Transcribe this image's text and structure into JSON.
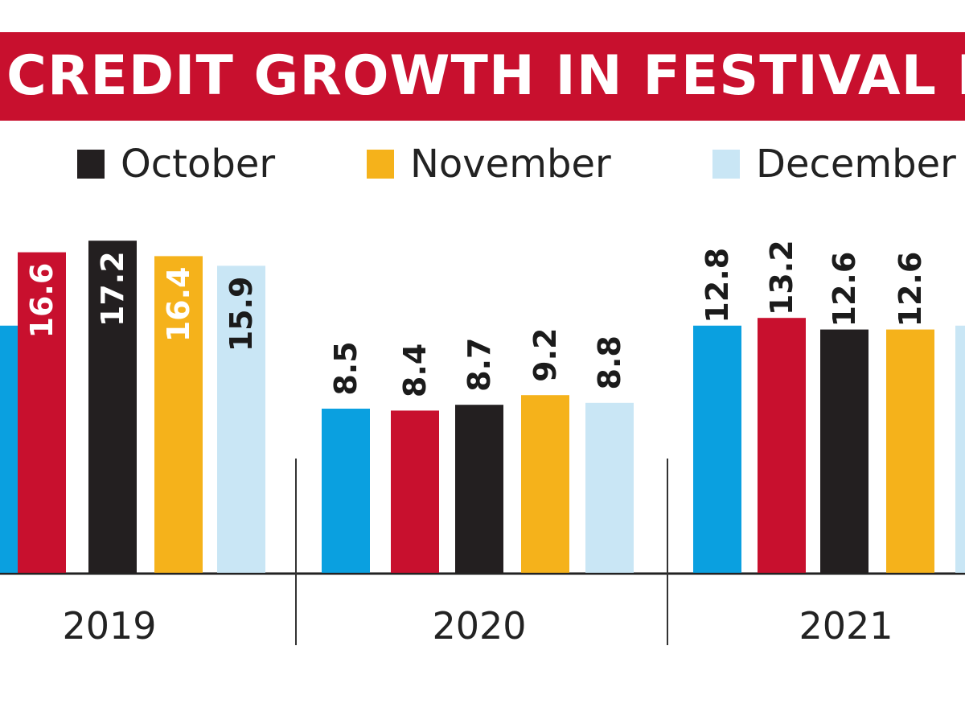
{
  "chart_data": {
    "type": "bar",
    "title": "CREDIT GROWTH IN FESTIVAL MONT",
    "unit": "",
    "legend": {
      "position": "top",
      "entries": [
        {
          "label": "October",
          "color": "#231f20"
        },
        {
          "label": "November",
          "color": "#f5b21b"
        },
        {
          "label": "December",
          "color": "#c9e6f5"
        }
      ]
    },
    "colors": {
      "blue": "#0aa0e0",
      "red": "#c8102e",
      "black": "#231f20",
      "yellow": "#f5b21b",
      "lightblue": "#c9e6f5",
      "title_band": "#c8102e"
    },
    "groups": [
      {
        "label": "2019",
        "bars": [
          {
            "value": null,
            "label": "",
            "color": "#0aa0e0"
          },
          {
            "value": 16.6,
            "label": "16.6",
            "color": "#c8102e"
          },
          {
            "value": 17.2,
            "label": "17.2",
            "color": "#231f20"
          },
          {
            "value": 16.4,
            "label": "16.4",
            "color": "#f5b21b"
          },
          {
            "value": 15.9,
            "label": "15.9",
            "color": "#c9e6f5"
          }
        ]
      },
      {
        "label": "2020",
        "bars": [
          {
            "value": 8.5,
            "label": "8.5",
            "color": "#0aa0e0"
          },
          {
            "value": 8.4,
            "label": "8.4",
            "color": "#c8102e"
          },
          {
            "value": 8.7,
            "label": "8.7",
            "color": "#231f20"
          },
          {
            "value": 9.2,
            "label": "9.2",
            "color": "#f5b21b"
          },
          {
            "value": 8.8,
            "label": "8.8",
            "color": "#c9e6f5"
          }
        ]
      },
      {
        "label": "2021",
        "bars": [
          {
            "value": 12.8,
            "label": "12.8",
            "color": "#0aa0e0"
          },
          {
            "value": 13.2,
            "label": "13.2",
            "color": "#c8102e"
          },
          {
            "value": 12.6,
            "label": "12.6",
            "color": "#231f20"
          },
          {
            "value": 12.6,
            "label": "12.6",
            "color": "#f5b21b"
          },
          {
            "value": null,
            "label": "",
            "color": "#c9e6f5"
          }
        ]
      }
    ],
    "ylim": [
      0,
      18
    ],
    "grid": false
  }
}
